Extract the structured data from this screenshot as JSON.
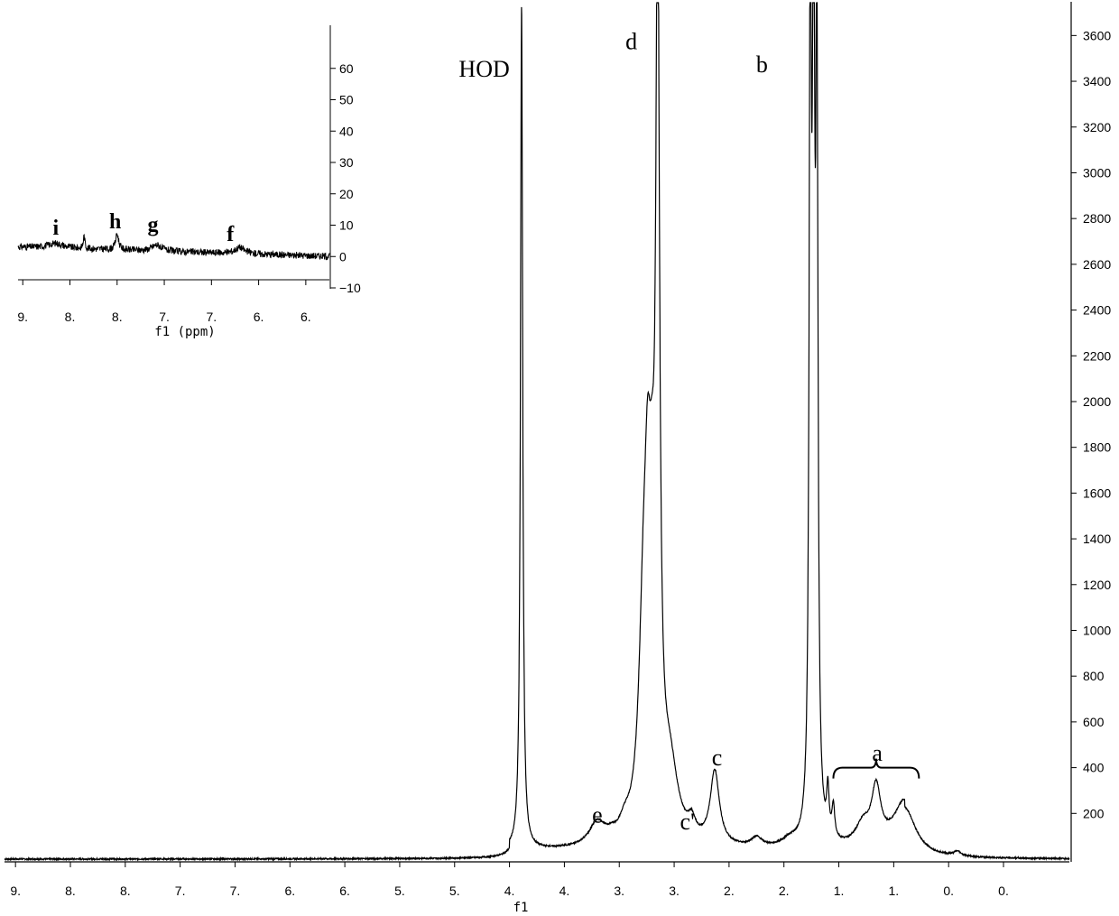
{
  "chart_data": [
    {
      "type": "line",
      "title": "",
      "xlabel": "f1",
      "ylabel": "",
      "x_reversed": true,
      "xlim": [
        9.5,
        -0.2
      ],
      "ylim": [
        0,
        3700
      ],
      "grid": false,
      "legend": "none",
      "x_tick_labels": [
        "9.",
        "8.",
        "8.",
        "7.",
        "7.",
        "6.",
        "6.",
        "5.",
        "5.",
        "4.",
        "4.",
        "3.",
        "3.",
        "2.",
        "2.",
        "1.",
        "1.",
        "0.",
        "0."
      ],
      "x_tick_values": [
        9.4,
        8.9,
        8.4,
        7.9,
        7.4,
        6.9,
        6.4,
        5.9,
        5.4,
        4.9,
        4.4,
        3.9,
        3.4,
        2.9,
        2.4,
        1.9,
        1.4,
        0.9,
        0.4
      ],
      "y_ticks": [
        200,
        400,
        600,
        800,
        1000,
        1200,
        1400,
        1600,
        1800,
        2000,
        2200,
        2400,
        2600,
        2800,
        3000,
        3200,
        3400,
        3600
      ],
      "y_tick_labels": [
        "200",
        "400",
        "600",
        "800",
        "1000",
        "1200",
        "1400",
        "1600",
        "1800",
        "2000",
        "2200",
        "2400",
        "2600",
        "2800",
        "3000",
        "3200",
        "3400",
        "3600"
      ],
      "baseline": 0,
      "peaks": [
        {
          "ppm": 4.79,
          "height": 3700,
          "width": 0.012,
          "clip": true
        },
        {
          "ppm": 4.1,
          "height": 100,
          "width": 0.09
        },
        {
          "ppm": 3.97,
          "height": 20,
          "width": 0.05
        },
        {
          "ppm": 3.85,
          "height": 60,
          "width": 0.06
        },
        {
          "ppm": 3.68,
          "height": 820,
          "width": 0.05
        },
        {
          "ppm": 3.64,
          "height": 920,
          "width": 0.035
        },
        {
          "ppm": 3.6,
          "height": 780,
          "width": 0.035
        },
        {
          "ppm": 3.55,
          "height": 3700,
          "width": 0.02,
          "clip": true
        },
        {
          "ppm": 3.44,
          "height": 300,
          "width": 0.09
        },
        {
          "ppm": 3.24,
          "height": 70,
          "width": 0.04
        },
        {
          "ppm": 3.03,
          "height": 320,
          "width": 0.05
        },
        {
          "ppm": 2.65,
          "height": 40,
          "width": 0.06
        },
        {
          "ppm": 2.35,
          "height": 30,
          "width": 0.08
        },
        {
          "ppm": 2.16,
          "height": 3700,
          "width": 0.012,
          "clip": true
        },
        {
          "ppm": 2.13,
          "height": 3700,
          "width": 0.012,
          "clip": true
        },
        {
          "ppm": 2.1,
          "height": 3300,
          "width": 0.012,
          "clip": true
        },
        {
          "ppm": 2.0,
          "height": 200,
          "width": 0.012
        },
        {
          "ppm": 1.95,
          "height": 140,
          "width": 0.015
        },
        {
          "ppm": 1.68,
          "height": 90,
          "width": 0.08
        },
        {
          "ppm": 1.56,
          "height": 240,
          "width": 0.05
        },
        {
          "ppm": 1.3,
          "height": 210,
          "width": 0.12
        },
        {
          "ppm": 0.82,
          "height": 20,
          "width": 0.04
        }
      ],
      "annotations": [
        {
          "text": "HOD",
          "ppm": 5.13,
          "y": 3420
        },
        {
          "text": "d",
          "ppm": 3.79,
          "y": 3540
        },
        {
          "text": "b",
          "ppm": 2.6,
          "y": 3440
        },
        {
          "text": "e",
          "ppm": 4.1,
          "y": 160
        },
        {
          "text": "c'",
          "ppm": 3.28,
          "y": 130
        },
        {
          "text": "c",
          "ppm": 3.01,
          "y": 410
        },
        {
          "text": "a",
          "ppm": 1.55,
          "y": 430
        }
      ],
      "bracket_label": "a",
      "bracket_range_ppm": [
        1.95,
        1.17
      ]
    },
    {
      "type": "line",
      "title": "",
      "xlabel": "f1 (ppm)",
      "ylabel": "",
      "x_reversed": true,
      "xlim": [
        9.25,
        5.95
      ],
      "ylim": [
        -10,
        70
      ],
      "grid": false,
      "legend": "none",
      "x_tick_labels": [
        "9.",
        "8.",
        "8.",
        "7.",
        "7.",
        "6.",
        "6."
      ],
      "x_tick_values": [
        9.2,
        8.7,
        8.2,
        7.7,
        7.2,
        6.7,
        6.2
      ],
      "y_ticks": [
        -10,
        0,
        10,
        20,
        30,
        40,
        50,
        60
      ],
      "y_tick_labels": [
        "−10",
        "0",
        "10",
        "20",
        "30",
        "40",
        "50",
        "60"
      ],
      "baseline": 3,
      "peaks": [
        {
          "ppm": 8.85,
          "height": 1.5,
          "width": 0.1
        },
        {
          "ppm": 8.55,
          "height": 4,
          "width": 0.01
        },
        {
          "ppm": 8.2,
          "height": 5,
          "width": 0.02
        },
        {
          "ppm": 7.78,
          "height": 2,
          "width": 0.06
        },
        {
          "ppm": 6.9,
          "height": 2,
          "width": 0.06
        }
      ],
      "annotations": [
        {
          "text": "i",
          "ppm": 8.85,
          "y": 7
        },
        {
          "text": "h",
          "ppm": 8.22,
          "y": 9
        },
        {
          "text": "g",
          "ppm": 7.82,
          "y": 8
        },
        {
          "text": "f",
          "ppm": 7.0,
          "y": 5
        }
      ]
    }
  ]
}
